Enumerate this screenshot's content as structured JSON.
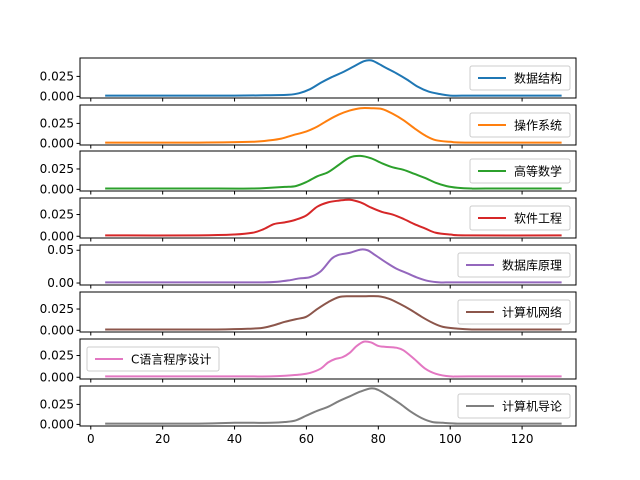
{
  "chart_data": {
    "type": "line",
    "kind": "density",
    "layout": "stacked-subplots",
    "sharex": true,
    "xlim": [
      -3,
      135
    ],
    "xticks": [
      0,
      20,
      40,
      60,
      80,
      100,
      120
    ],
    "legend_loc": "best",
    "panels": [
      {
        "name": "数据结构",
        "color": "#1f77b4",
        "ylim": [
          -0.002,
          0.048
        ],
        "yticks": [
          0.0,
          0.025
        ],
        "ytick_labels": [
          "0.000",
          "0.025"
        ],
        "legend": "right",
        "x": [
          4,
          20,
          40,
          50,
          55,
          58,
          61,
          64,
          67,
          70,
          73,
          76,
          78,
          80,
          82,
          85,
          88,
          91,
          94,
          97,
          100,
          105,
          110,
          131
        ],
        "y": [
          0.001,
          0.001,
          0.001,
          0.0015,
          0.002,
          0.004,
          0.009,
          0.017,
          0.024,
          0.03,
          0.037,
          0.044,
          0.045,
          0.041,
          0.036,
          0.029,
          0.021,
          0.012,
          0.006,
          0.003,
          0.001,
          0.001,
          0.001,
          0.001
        ]
      },
      {
        "name": "操作系统",
        "color": "#ff7f0e",
        "ylim": [
          -0.002,
          0.048
        ],
        "yticks": [
          0.0,
          0.025
        ],
        "ytick_labels": [
          "0.000",
          "0.025"
        ],
        "legend": "right",
        "x": [
          4,
          30,
          45,
          50,
          53,
          56,
          60,
          63,
          66,
          69,
          72,
          75,
          78,
          81,
          84,
          87,
          90,
          93,
          96,
          100,
          105,
          131
        ],
        "y": [
          0.001,
          0.001,
          0.002,
          0.004,
          0.006,
          0.01,
          0.015,
          0.021,
          0.029,
          0.036,
          0.041,
          0.044,
          0.044,
          0.043,
          0.037,
          0.029,
          0.019,
          0.01,
          0.004,
          0.002,
          0.001,
          0.001
        ]
      },
      {
        "name": "高等数学",
        "color": "#2ca02c",
        "ylim": [
          -0.002,
          0.047
        ],
        "yticks": [
          0.0,
          0.025
        ],
        "ytick_labels": [
          "0.000",
          "0.025"
        ],
        "legend": "right",
        "x": [
          4,
          35,
          45,
          50,
          54,
          57,
          60,
          63,
          66,
          69,
          72,
          75,
          78,
          81,
          84,
          87,
          90,
          93,
          96,
          99,
          102,
          106,
          110,
          131
        ],
        "y": [
          0.001,
          0.001,
          0.001,
          0.002,
          0.003,
          0.004,
          0.009,
          0.016,
          0.021,
          0.03,
          0.039,
          0.041,
          0.038,
          0.032,
          0.027,
          0.024,
          0.019,
          0.014,
          0.008,
          0.004,
          0.002,
          0.001,
          0.001,
          0.001
        ]
      },
      {
        "name": "软件工程",
        "color": "#d62728",
        "ylim": [
          -0.002,
          0.044
        ],
        "yticks": [
          0.0,
          0.025
        ],
        "ytick_labels": [
          "0.000",
          "0.025"
        ],
        "legend": "right",
        "x": [
          4,
          30,
          40,
          45,
          48,
          51,
          54,
          57,
          60,
          63,
          66,
          69,
          72,
          75,
          78,
          81,
          84,
          87,
          90,
          93,
          96,
          100,
          105,
          131
        ],
        "y": [
          0.001,
          0.001,
          0.002,
          0.004,
          0.008,
          0.014,
          0.016,
          0.019,
          0.024,
          0.034,
          0.039,
          0.041,
          0.042,
          0.039,
          0.033,
          0.028,
          0.025,
          0.02,
          0.014,
          0.009,
          0.004,
          0.002,
          0.001,
          0.001
        ]
      },
      {
        "name": "数据库原理",
        "color": "#9467bd",
        "ylim": [
          -0.003,
          0.058
        ],
        "yticks": [
          0.0,
          0.05
        ],
        "ytick_labels": [
          "0.00",
          "0.05"
        ],
        "legend": "right",
        "x": [
          4,
          40,
          48,
          52,
          55,
          58,
          61,
          64,
          67,
          69,
          72,
          75,
          77,
          79,
          82,
          85,
          88,
          91,
          94,
          97,
          100,
          105,
          131
        ],
        "y": [
          0.001,
          0.001,
          0.001,
          0.002,
          0.004,
          0.007,
          0.009,
          0.018,
          0.037,
          0.043,
          0.046,
          0.051,
          0.05,
          0.043,
          0.032,
          0.022,
          0.015,
          0.008,
          0.003,
          0.001,
          0.001,
          0.001,
          0.001
        ]
      },
      {
        "name": "计算机网络",
        "color": "#8c564b",
        "ylim": [
          -0.002,
          0.045
        ],
        "yticks": [
          0.0,
          0.025
        ],
        "ytick_labels": [
          "0.000",
          "0.025"
        ],
        "legend": "right",
        "x": [
          4,
          35,
          45,
          48,
          51,
          54,
          57,
          60,
          63,
          66,
          69,
          72,
          76,
          80,
          83,
          86,
          89,
          92,
          95,
          98,
          102,
          106,
          110,
          131
        ],
        "y": [
          0.001,
          0.001,
          0.002,
          0.003,
          0.006,
          0.01,
          0.013,
          0.016,
          0.025,
          0.033,
          0.039,
          0.04,
          0.04,
          0.04,
          0.037,
          0.031,
          0.024,
          0.016,
          0.009,
          0.004,
          0.002,
          0.001,
          0.001,
          0.001
        ]
      },
      {
        "name": "C语言程序设计",
        "color": "#e377c2",
        "ylim": [
          -0.002,
          0.044
        ],
        "yticks": [
          0.0,
          0.025
        ],
        "ytick_labels": [
          "0.000",
          "0.025"
        ],
        "legend": "left",
        "x": [
          4,
          40,
          50,
          55,
          58,
          61,
          64,
          66,
          68,
          70,
          72,
          74,
          76,
          78,
          80,
          82,
          85,
          87,
          90,
          93,
          96,
          100,
          105,
          131
        ],
        "y": [
          0.001,
          0.001,
          0.001,
          0.002,
          0.003,
          0.005,
          0.01,
          0.017,
          0.021,
          0.023,
          0.028,
          0.036,
          0.041,
          0.04,
          0.036,
          0.035,
          0.034,
          0.031,
          0.021,
          0.01,
          0.004,
          0.001,
          0.001,
          0.001
        ]
      },
      {
        "name": "计算机导论",
        "color": "#7f7f7f",
        "ylim": [
          -0.002,
          0.048
        ],
        "yticks": [
          0.0,
          0.025
        ],
        "ytick_labels": [
          "0.000",
          "0.025"
        ],
        "legend": "right",
        "x": [
          4,
          30,
          40,
          45,
          50,
          54,
          57,
          60,
          63,
          66,
          69,
          72,
          75,
          78,
          80,
          83,
          86,
          89,
          92,
          95,
          98,
          102,
          106,
          131
        ],
        "y": [
          0.001,
          0.001,
          0.002,
          0.002,
          0.002,
          0.003,
          0.005,
          0.011,
          0.017,
          0.022,
          0.029,
          0.035,
          0.041,
          0.045,
          0.043,
          0.035,
          0.026,
          0.016,
          0.008,
          0.003,
          0.002,
          0.001,
          0.001,
          0.001
        ]
      }
    ]
  }
}
